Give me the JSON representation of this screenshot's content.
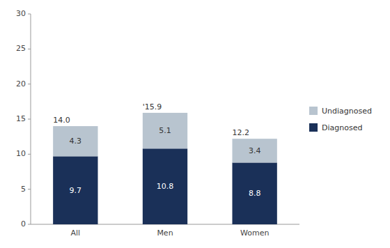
{
  "chart_data": {
    "type": "bar",
    "stacked": true,
    "categories": [
      "All",
      "Men",
      "Women"
    ],
    "series": [
      {
        "name": "Diagnosed",
        "color": "#1a3058",
        "values": [
          9.7,
          10.8,
          8.8
        ]
      },
      {
        "name": "Undiagnosed",
        "color": "#b8c4cf",
        "values": [
          4.3,
          5.1,
          3.4
        ]
      }
    ],
    "totals": [
      14.0,
      15.9,
      12.2
    ],
    "total_labels": [
      "14.0",
      "'15.9",
      "12.2"
    ],
    "data_labels": true,
    "ylim": [
      0,
      30
    ],
    "yticks": [
      0,
      5,
      10,
      15,
      20,
      25,
      30
    ],
    "grid": false,
    "legend": "right"
  }
}
